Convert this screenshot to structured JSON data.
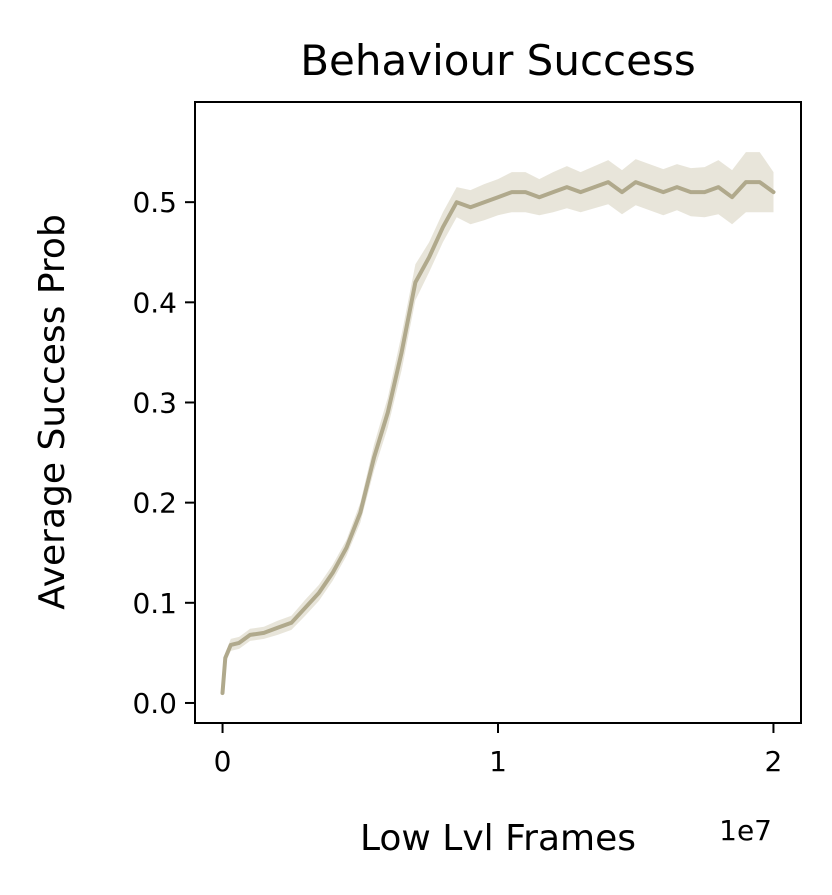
{
  "chart_data": {
    "type": "line",
    "title": "Behaviour Success",
    "xlabel": "Low Lvl Frames",
    "ylabel": "Average Success Prob",
    "x_offset_label": "1e7",
    "xlim": [
      -0.1,
      2.1
    ],
    "ylim": [
      -0.02,
      0.6
    ],
    "x_ticks": [
      0,
      1,
      2
    ],
    "x_tick_labels": [
      "0",
      "1",
      "2"
    ],
    "y_ticks": [
      0.0,
      0.1,
      0.2,
      0.3,
      0.4,
      0.5
    ],
    "y_tick_labels": [
      "0.0",
      "0.1",
      "0.2",
      "0.3",
      "0.4",
      "0.5"
    ],
    "grid": false,
    "legend": "none",
    "colors": {
      "line": "#b0a98c",
      "band": "#d9d3c2"
    },
    "series": [
      {
        "x": [
          0.0,
          0.01,
          0.03,
          0.06,
          0.1,
          0.15,
          0.2,
          0.25,
          0.3,
          0.35,
          0.4,
          0.45,
          0.5,
          0.55,
          0.6,
          0.65,
          0.7,
          0.75,
          0.8,
          0.85,
          0.9,
          0.95,
          1.0,
          1.05,
          1.1,
          1.15,
          1.2,
          1.25,
          1.3,
          1.35,
          1.4,
          1.45,
          1.5,
          1.55,
          1.6,
          1.65,
          1.7,
          1.75,
          1.8,
          1.85,
          1.9,
          1.95,
          2.0
        ],
        "y": [
          0.01,
          0.045,
          0.058,
          0.06,
          0.068,
          0.07,
          0.075,
          0.08,
          0.095,
          0.11,
          0.13,
          0.155,
          0.19,
          0.245,
          0.29,
          0.35,
          0.42,
          0.445,
          0.475,
          0.5,
          0.495,
          0.5,
          0.505,
          0.51,
          0.51,
          0.505,
          0.51,
          0.515,
          0.51,
          0.515,
          0.52,
          0.51,
          0.52,
          0.515,
          0.51,
          0.515,
          0.51,
          0.51,
          0.515,
          0.505,
          0.52,
          0.52,
          0.51
        ],
        "lower": [
          0.005,
          0.04,
          0.052,
          0.054,
          0.062,
          0.064,
          0.068,
          0.073,
          0.087,
          0.102,
          0.122,
          0.147,
          0.18,
          0.232,
          0.275,
          0.332,
          0.402,
          0.43,
          0.46,
          0.485,
          0.478,
          0.482,
          0.487,
          0.49,
          0.49,
          0.487,
          0.49,
          0.494,
          0.49,
          0.494,
          0.498,
          0.488,
          0.497,
          0.492,
          0.487,
          0.492,
          0.486,
          0.485,
          0.488,
          0.478,
          0.49,
          0.49,
          0.49
        ],
        "upper": [
          0.015,
          0.05,
          0.064,
          0.066,
          0.074,
          0.076,
          0.082,
          0.087,
          0.103,
          0.118,
          0.138,
          0.163,
          0.2,
          0.258,
          0.305,
          0.368,
          0.438,
          0.46,
          0.49,
          0.515,
          0.512,
          0.518,
          0.523,
          0.53,
          0.53,
          0.523,
          0.53,
          0.536,
          0.53,
          0.536,
          0.542,
          0.532,
          0.543,
          0.538,
          0.533,
          0.538,
          0.534,
          0.535,
          0.542,
          0.532,
          0.55,
          0.55,
          0.53
        ]
      }
    ]
  }
}
